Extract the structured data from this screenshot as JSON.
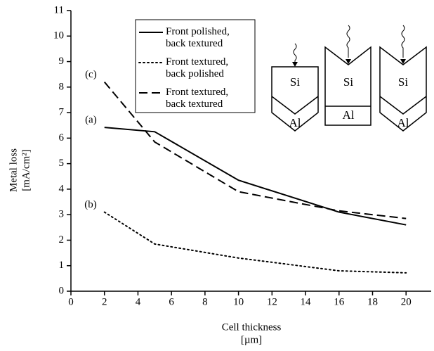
{
  "chart_data": {
    "type": "line",
    "x_label": [
      "Cell thickness",
      "[µm]"
    ],
    "y_label": [
      "Metal loss",
      "[mA/cm²]"
    ],
    "xlim": [
      0,
      21.5
    ],
    "xticks": [
      0,
      2,
      4,
      6,
      8,
      10,
      12,
      14,
      16,
      18,
      20
    ],
    "ylim": [
      0,
      11
    ],
    "yticks": [
      0,
      1,
      2,
      3,
      4,
      5,
      6,
      7,
      8,
      9,
      10,
      11
    ],
    "series": [
      {
        "name": "Front polished, back textured",
        "tag": "(a)",
        "dash": "solid",
        "color": "#000000",
        "x": [
          2,
          5,
          10,
          16,
          20
        ],
        "values": [
          6.42,
          6.25,
          4.35,
          3.1,
          2.6
        ]
      },
      {
        "name": "Front textured, back polished",
        "tag": "(b)",
        "dash": "dotted",
        "color": "#000000",
        "x": [
          2,
          5,
          10,
          16,
          20
        ],
        "values": [
          3.1,
          1.85,
          1.3,
          0.8,
          0.72
        ]
      },
      {
        "name": "Front textured, back textured",
        "tag": "(c)",
        "dash": "dashed",
        "color": "#000000",
        "x": [
          2,
          5,
          10,
          16,
          20
        ],
        "values": [
          8.2,
          5.85,
          3.9,
          3.15,
          2.85
        ]
      }
    ],
    "insets": [
      {
        "top": "Si",
        "bottom": "Al"
      },
      {
        "top": "Si",
        "bottom": "Al"
      },
      {
        "top": "Si",
        "bottom": "Al"
      }
    ]
  }
}
